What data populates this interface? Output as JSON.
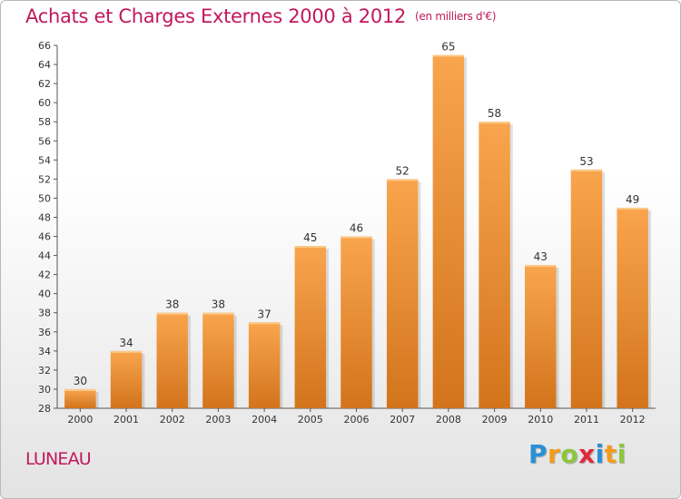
{
  "chart_data": {
    "type": "bar",
    "title": "Achats et Charges Externes 2000 à 2012",
    "subtitle": "(en milliers d'€)",
    "xlabel": "",
    "ylabel": "",
    "categories": [
      "2000",
      "2001",
      "2002",
      "2003",
      "2004",
      "2005",
      "2006",
      "2007",
      "2008",
      "2009",
      "2010",
      "2011",
      "2012"
    ],
    "values": [
      30,
      34,
      38,
      38,
      37,
      45,
      46,
      52,
      65,
      58,
      43,
      53,
      49
    ],
    "ylim": [
      28,
      66
    ],
    "ytick_step": 2,
    "grid": false,
    "legend": "none",
    "bar_color_top": "#f9a54e",
    "bar_color_bottom": "#d2741c"
  },
  "footer": {
    "city": "LUNEAU",
    "logo_letters": [
      {
        "ch": "P",
        "color": "#2a8fd6"
      },
      {
        "ch": "r",
        "color": "#f39c1a"
      },
      {
        "ch": "o",
        "color": "#8cc63f"
      },
      {
        "ch": "x",
        "color": "#e02a3c"
      },
      {
        "ch": "i",
        "color": "#2a8fd6"
      },
      {
        "ch": "t",
        "color": "#f39c1a"
      },
      {
        "ch": "i",
        "color": "#8cc63f"
      }
    ]
  }
}
